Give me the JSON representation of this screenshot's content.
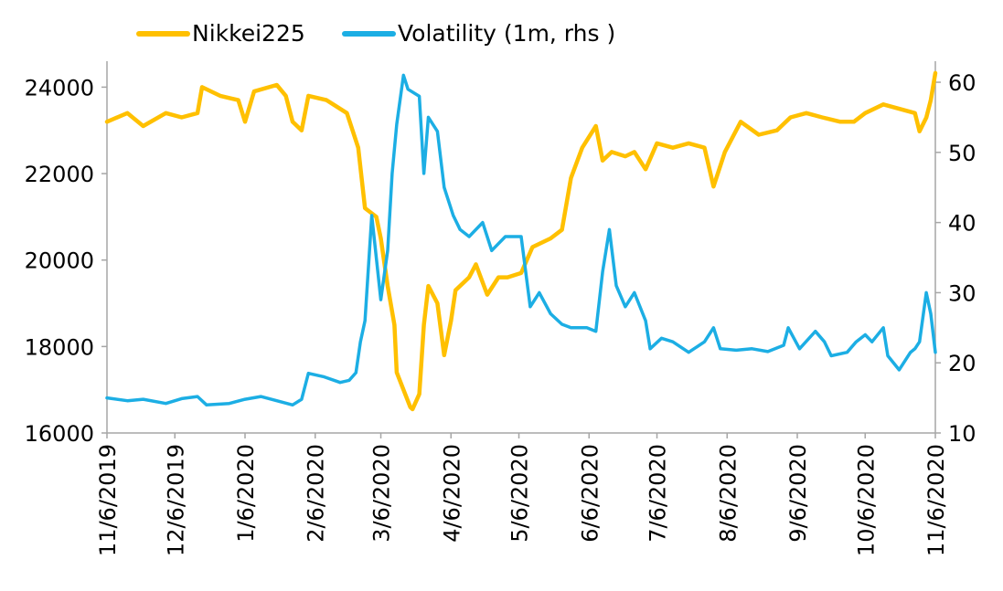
{
  "chart_data": {
    "type": "line",
    "legend": {
      "position": "top"
    },
    "series": [
      {
        "name": "Nikkei225",
        "axis": "left",
        "color": "#FFC000",
        "points": [
          [
            "2019-11-06",
            23200
          ],
          [
            "2019-11-15",
            23400
          ],
          [
            "2019-11-22",
            23100
          ],
          [
            "2019-12-02",
            23400
          ],
          [
            "2019-12-09",
            23300
          ],
          [
            "2019-12-16",
            23400
          ],
          [
            "2019-12-18",
            24000
          ],
          [
            "2019-12-26",
            23800
          ],
          [
            "2020-01-03",
            23700
          ],
          [
            "2020-01-06",
            23200
          ],
          [
            "2020-01-10",
            23900
          ],
          [
            "2020-01-20",
            24050
          ],
          [
            "2020-01-24",
            23800
          ],
          [
            "2020-01-27",
            23200
          ],
          [
            "2020-01-31",
            23000
          ],
          [
            "2020-02-03",
            23800
          ],
          [
            "2020-02-11",
            23700
          ],
          [
            "2020-02-14",
            23600
          ],
          [
            "2020-02-20",
            23400
          ],
          [
            "2020-02-25",
            22600
          ],
          [
            "2020-02-28",
            21200
          ],
          [
            "2020-03-04",
            21000
          ],
          [
            "2020-03-06",
            20500
          ],
          [
            "2020-03-09",
            19400
          ],
          [
            "2020-03-12",
            18500
          ],
          [
            "2020-03-13",
            17400
          ],
          [
            "2020-03-16",
            17000
          ],
          [
            "2020-03-19",
            16600
          ],
          [
            "2020-03-20",
            16550
          ],
          [
            "2020-03-23",
            16900
          ],
          [
            "2020-03-25",
            18500
          ],
          [
            "2020-03-27",
            19400
          ],
          [
            "2020-03-31",
            19000
          ],
          [
            "2020-04-03",
            17800
          ],
          [
            "2020-04-06",
            18600
          ],
          [
            "2020-04-08",
            19300
          ],
          [
            "2020-04-14",
            19600
          ],
          [
            "2020-04-17",
            19900
          ],
          [
            "2020-04-22",
            19200
          ],
          [
            "2020-04-27",
            19600
          ],
          [
            "2020-05-01",
            19600
          ],
          [
            "2020-05-07",
            19700
          ],
          [
            "2020-05-12",
            20300
          ],
          [
            "2020-05-20",
            20500
          ],
          [
            "2020-05-25",
            20700
          ],
          [
            "2020-05-29",
            21900
          ],
          [
            "2020-06-03",
            22600
          ],
          [
            "2020-06-09",
            23100
          ],
          [
            "2020-06-12",
            22300
          ],
          [
            "2020-06-16",
            22500
          ],
          [
            "2020-06-22",
            22400
          ],
          [
            "2020-06-26",
            22500
          ],
          [
            "2020-07-01",
            22100
          ],
          [
            "2020-07-06",
            22700
          ],
          [
            "2020-07-13",
            22600
          ],
          [
            "2020-07-20",
            22700
          ],
          [
            "2020-07-27",
            22600
          ],
          [
            "2020-07-31",
            21700
          ],
          [
            "2020-08-05",
            22500
          ],
          [
            "2020-08-12",
            23200
          ],
          [
            "2020-08-20",
            22900
          ],
          [
            "2020-08-28",
            23000
          ],
          [
            "2020-09-03",
            23300
          ],
          [
            "2020-09-10",
            23400
          ],
          [
            "2020-09-17",
            23300
          ],
          [
            "2020-09-25",
            23200
          ],
          [
            "2020-10-01",
            23200
          ],
          [
            "2020-10-06",
            23400
          ],
          [
            "2020-10-14",
            23600
          ],
          [
            "2020-10-21",
            23500
          ],
          [
            "2020-10-28",
            23400
          ],
          [
            "2020-10-30",
            22977
          ],
          [
            "2020-11-02",
            23295
          ],
          [
            "2020-11-04",
            23700
          ],
          [
            "2020-11-06",
            24325
          ]
        ]
      },
      {
        "name": "Volatility (1m, rhs )",
        "axis": "right",
        "color": "#1CAEE4",
        "points": [
          [
            "2019-11-06",
            15.0
          ],
          [
            "2019-11-15",
            14.6
          ],
          [
            "2019-11-22",
            14.8
          ],
          [
            "2019-12-02",
            14.2
          ],
          [
            "2019-12-09",
            14.9
          ],
          [
            "2019-12-16",
            15.2
          ],
          [
            "2019-12-20",
            14.0
          ],
          [
            "2019-12-30",
            14.2
          ],
          [
            "2020-01-06",
            14.8
          ],
          [
            "2020-01-13",
            15.2
          ],
          [
            "2020-01-20",
            14.6
          ],
          [
            "2020-01-27",
            14.0
          ],
          [
            "2020-01-31",
            14.8
          ],
          [
            "2020-02-03",
            18.5
          ],
          [
            "2020-02-10",
            18.0
          ],
          [
            "2020-02-17",
            17.2
          ],
          [
            "2020-02-21",
            17.5
          ],
          [
            "2020-02-24",
            18.6
          ],
          [
            "2020-02-26",
            23.0
          ],
          [
            "2020-02-28",
            26.0
          ],
          [
            "2020-03-02",
            41.0
          ],
          [
            "2020-03-06",
            29.0
          ],
          [
            "2020-03-09",
            36.0
          ],
          [
            "2020-03-11",
            47.0
          ],
          [
            "2020-03-13",
            54.0
          ],
          [
            "2020-03-16",
            61.0
          ],
          [
            "2020-03-18",
            59.0
          ],
          [
            "2020-03-23",
            58.0
          ],
          [
            "2020-03-25",
            47.0
          ],
          [
            "2020-03-27",
            55.0
          ],
          [
            "2020-03-31",
            53.0
          ],
          [
            "2020-04-03",
            45.0
          ],
          [
            "2020-04-07",
            41.0
          ],
          [
            "2020-04-10",
            39.0
          ],
          [
            "2020-04-14",
            38.0
          ],
          [
            "2020-04-20",
            40.0
          ],
          [
            "2020-04-24",
            36.0
          ],
          [
            "2020-04-27",
            37.0
          ],
          [
            "2020-04-30",
            38.0
          ],
          [
            "2020-05-07",
            38.0
          ],
          [
            "2020-05-11",
            28.0
          ],
          [
            "2020-05-15",
            30.0
          ],
          [
            "2020-05-20",
            27.0
          ],
          [
            "2020-05-25",
            25.5
          ],
          [
            "2020-05-29",
            25.0
          ],
          [
            "2020-06-05",
            25.0
          ],
          [
            "2020-06-09",
            24.5
          ],
          [
            "2020-06-12",
            33.0
          ],
          [
            "2020-06-15",
            39.0
          ],
          [
            "2020-06-18",
            31.0
          ],
          [
            "2020-06-22",
            28.0
          ],
          [
            "2020-06-26",
            30.0
          ],
          [
            "2020-07-01",
            26.0
          ],
          [
            "2020-07-03",
            22.0
          ],
          [
            "2020-07-08",
            23.5
          ],
          [
            "2020-07-13",
            23.0
          ],
          [
            "2020-07-20",
            21.5
          ],
          [
            "2020-07-27",
            23.0
          ],
          [
            "2020-07-31",
            25.0
          ],
          [
            "2020-08-03",
            22.0
          ],
          [
            "2020-08-10",
            21.8
          ],
          [
            "2020-08-17",
            22.0
          ],
          [
            "2020-08-24",
            21.6
          ],
          [
            "2020-08-31",
            22.5
          ],
          [
            "2020-09-02",
            25.0
          ],
          [
            "2020-09-07",
            22.0
          ],
          [
            "2020-09-14",
            24.5
          ],
          [
            "2020-09-18",
            23.0
          ],
          [
            "2020-09-21",
            21.0
          ],
          [
            "2020-09-28",
            21.5
          ],
          [
            "2020-10-02",
            23.0
          ],
          [
            "2020-10-06",
            24.0
          ],
          [
            "2020-10-09",
            23.0
          ],
          [
            "2020-10-14",
            25.0
          ],
          [
            "2020-10-16",
            21.0
          ],
          [
            "2020-10-21",
            19.0
          ],
          [
            "2020-10-26",
            21.5
          ],
          [
            "2020-10-28",
            22.0
          ],
          [
            "2020-10-30",
            23.0
          ],
          [
            "2020-11-02",
            30.0
          ],
          [
            "2020-11-04",
            27.0
          ],
          [
            "2020-11-06",
            21.5
          ]
        ]
      }
    ],
    "y_left": {
      "ylim": [
        16000,
        24600
      ],
      "ticks": [
        16000,
        18000,
        20000,
        22000,
        24000
      ]
    },
    "y_right": {
      "ylim": [
        10,
        63
      ],
      "ticks": [
        10,
        20,
        30,
        40,
        50,
        60
      ]
    },
    "x_axis": {
      "range": [
        "2019-11-06",
        "2020-11-06"
      ],
      "ticks": [
        {
          "date": "2019-11-06",
          "label": "11/6/2019"
        },
        {
          "date": "2019-12-06",
          "label": "12/6/2019"
        },
        {
          "date": "2020-01-06",
          "label": "1/6/2020"
        },
        {
          "date": "2020-02-06",
          "label": "2/6/2020"
        },
        {
          "date": "2020-03-06",
          "label": "3/6/2020"
        },
        {
          "date": "2020-04-06",
          "label": "4/6/2020"
        },
        {
          "date": "2020-05-06",
          "label": "5/6/2020"
        },
        {
          "date": "2020-06-06",
          "label": "6/6/2020"
        },
        {
          "date": "2020-07-06",
          "label": "7/6/2020"
        },
        {
          "date": "2020-08-06",
          "label": "8/6/2020"
        },
        {
          "date": "2020-09-06",
          "label": "9/6/2020"
        },
        {
          "date": "2020-10-06",
          "label": "10/6/2020"
        },
        {
          "date": "2020-11-06",
          "label": "11/6/2020"
        }
      ]
    },
    "grid": false
  }
}
